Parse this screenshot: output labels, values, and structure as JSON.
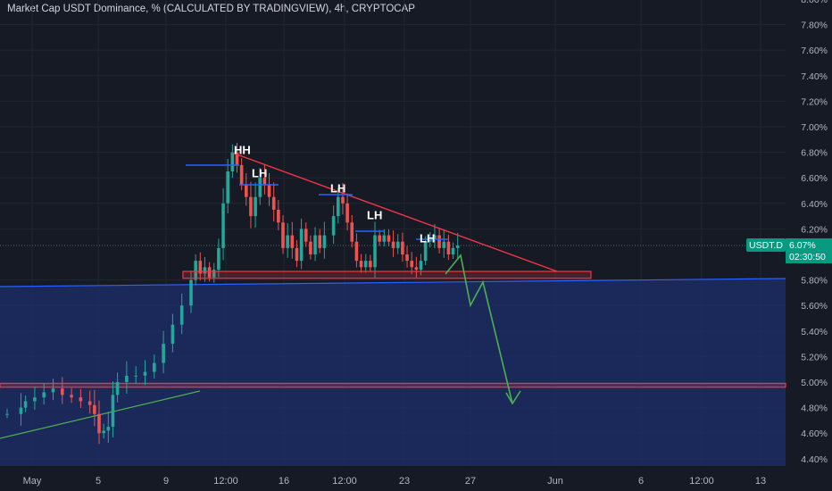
{
  "header": {
    "title": "Market Cap USDT Dominance, % (CALCULATED BY TRADINGVIEW), 4h, CRYPTOCAP"
  },
  "chart_data": {
    "type": "candlestick",
    "title": "Market Cap USDT Dominance, % (CALCULATED BY TRADINGVIEW), 4h, CRYPTOCAP",
    "yunit": "%",
    "ylim": [
      4.3,
      8.0
    ],
    "y_ticks": [
      "8.00%",
      "7.80%",
      "7.60%",
      "7.40%",
      "7.20%",
      "7.00%",
      "6.80%",
      "6.60%",
      "6.40%",
      "6.20%",
      "5.80%",
      "5.60%",
      "5.40%",
      "5.20%",
      "5.00%",
      "4.80%",
      "4.60%",
      "4.40%"
    ],
    "x_ticks": [
      "May",
      "5",
      "9",
      "12:00",
      "16",
      "12:00",
      "23",
      "27",
      "Jun",
      "6",
      "12:00",
      "13"
    ],
    "approx_path": [
      [
        1,
        4.75
      ],
      [
        4,
        4.8
      ],
      [
        5,
        4.85
      ],
      [
        7,
        4.88
      ],
      [
        9,
        4.92
      ],
      [
        11,
        4.95
      ],
      [
        13,
        4.9
      ],
      [
        15,
        4.88
      ],
      [
        17,
        4.85
      ],
      [
        19,
        4.82
      ],
      [
        20,
        4.75
      ],
      [
        21,
        4.6
      ],
      [
        22,
        4.62
      ],
      [
        23,
        4.65
      ],
      [
        24,
        4.9
      ],
      [
        25,
        5.0
      ],
      [
        27,
        5.05
      ],
      [
        29,
        5.05
      ],
      [
        31,
        5.08
      ],
      [
        33,
        5.15
      ],
      [
        35,
        5.3
      ],
      [
        37,
        5.45
      ],
      [
        39,
        5.6
      ],
      [
        41,
        5.8
      ],
      [
        42,
        5.95
      ],
      [
        43,
        5.85
      ],
      [
        44,
        5.9
      ],
      [
        45,
        5.82
      ],
      [
        46,
        5.88
      ],
      [
        47,
        6.05
      ],
      [
        48,
        6.4
      ],
      [
        49,
        6.65
      ],
      [
        50,
        6.8
      ],
      [
        51,
        6.7
      ],
      [
        52,
        6.55
      ],
      [
        53,
        6.45
      ],
      [
        54,
        6.3
      ],
      [
        55,
        6.45
      ],
      [
        56,
        6.6
      ],
      [
        57,
        6.55
      ],
      [
        58,
        6.45
      ],
      [
        59,
        6.35
      ],
      [
        60,
        6.25
      ],
      [
        61,
        6.05
      ],
      [
        62,
        6.15
      ],
      [
        63,
        6.05
      ],
      [
        64,
        5.95
      ],
      [
        65,
        6.2
      ],
      [
        66,
        6.1
      ],
      [
        67,
        6.0
      ],
      [
        68,
        6.15
      ],
      [
        69,
        6.05
      ],
      [
        70,
        6.15
      ],
      [
        72,
        6.3
      ],
      [
        73,
        6.45
      ],
      [
        74,
        6.4
      ],
      [
        75,
        6.25
      ],
      [
        76,
        6.1
      ],
      [
        77,
        5.95
      ],
      [
        78,
        5.9
      ],
      [
        79,
        5.95
      ],
      [
        80,
        5.9
      ],
      [
        81,
        6.15
      ],
      [
        82,
        6.1
      ],
      [
        83,
        6.15
      ],
      [
        84,
        6.1
      ],
      [
        85,
        6.05
      ],
      [
        86,
        6.1
      ],
      [
        87,
        6.0
      ],
      [
        88,
        5.95
      ],
      [
        89,
        5.9
      ],
      [
        90,
        5.88
      ],
      [
        91,
        5.95
      ],
      [
        92,
        6.1
      ],
      [
        93,
        6.12
      ],
      [
        94,
        6.15
      ],
      [
        95,
        6.05
      ],
      [
        96,
        6.1
      ],
      [
        97,
        6.0
      ],
      [
        98,
        6.05
      ],
      [
        99,
        6.07
      ]
    ],
    "last_price": {
      "symbol": "USDT.D",
      "value": "6.07%",
      "countdown": "02:30:50"
    },
    "annotations": [
      {
        "text": "HH",
        "y": 6.82
      },
      {
        "text": "LH",
        "y": 6.64
      },
      {
        "text": "LH",
        "y": 6.52
      },
      {
        "text": "LH",
        "y": 6.31
      },
      {
        "text": "LH",
        "y": 6.13
      }
    ],
    "support_zones": [
      {
        "from": 5.82,
        "to": 5.86
      },
      {
        "from": 4.96,
        "to": 4.99
      }
    ],
    "projected_path": [
      [
        5.85
      ],
      [
        6.0
      ],
      [
        5.62
      ],
      [
        5.85
      ],
      [
        4.86
      ]
    ],
    "colors": {
      "up": "#26a69a",
      "down": "#ef5350",
      "background": "#161a25",
      "zone": "#1c2f6b",
      "resistance": "#f23645",
      "level": "#2962ff",
      "projection": "#4caf50",
      "badge": "#089981"
    }
  }
}
